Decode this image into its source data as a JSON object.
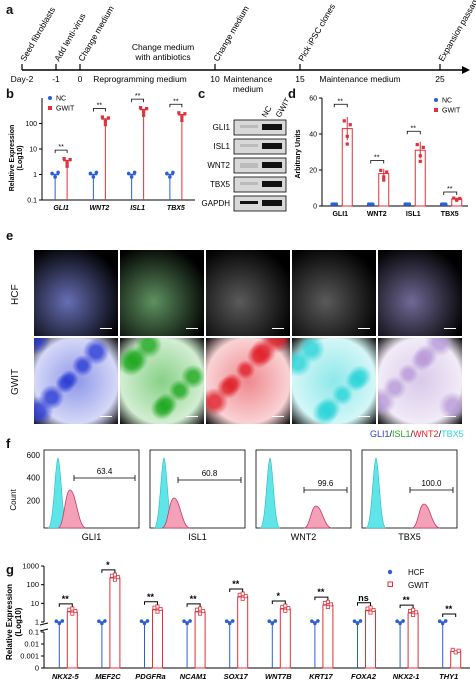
{
  "panels": {
    "a": "a",
    "b": "b",
    "c": "c",
    "d": "d",
    "e": "e",
    "f": "f",
    "g": "g"
  },
  "timeline": {
    "days": [
      "Day-2",
      "-1",
      "0",
      "10",
      "15",
      "25"
    ],
    "events_top": [
      "Seed fibroblasts",
      "Add lenti-virus",
      "Change medium",
      "Change medium with antibiotics",
      "Change medium",
      "Pick iPSC clones",
      "Expansion passage"
    ],
    "phases": [
      "Reprogramming medium",
      "Maintenance medium",
      "Maintenance medium"
    ]
  },
  "panel_b": {
    "ylabel": "Relative Expression (Log10)",
    "yticks": [
      "100",
      "10",
      "1",
      "0.1"
    ],
    "legend": [
      "NC",
      "GWIT"
    ],
    "genes": [
      "GLI1",
      "WNT2",
      "ISL1",
      "TBX5"
    ],
    "sig": [
      "**",
      "**",
      "**",
      "**"
    ]
  },
  "panel_c": {
    "cols": [
      "NC",
      "GWIT"
    ],
    "rows": [
      "GLI1",
      "ISL1",
      "WNT2",
      "TBX5",
      "GAPDH"
    ]
  },
  "panel_d": {
    "ylabel": "Arbitrary Units",
    "yticks": [
      "60",
      "40",
      "20",
      "0"
    ],
    "legend": [
      "NC",
      "GWIT"
    ],
    "genes": [
      "GLI1",
      "WNT2",
      "ISL1",
      "TBX5"
    ],
    "sig": [
      "**",
      "**",
      "**",
      "**"
    ],
    "gwit_values": [
      43,
      18,
      31,
      4
    ],
    "nc_values": [
      1,
      1,
      1,
      1
    ]
  },
  "panel_e": {
    "rows": [
      "HCF",
      "GWIT"
    ],
    "legend": {
      "gli1": "GLI1",
      "sep": "/",
      "isl1": "ISL1",
      "wnt2": "WNT2",
      "tbx5": "TBX5"
    },
    "colors": [
      "#2a3bd6",
      "#1fa81f",
      "#e0202a",
      "#2ad4d8",
      "#b89ad8"
    ]
  },
  "panel_f": {
    "yticks": [
      "600",
      "400",
      "200"
    ],
    "ylabel": "Count",
    "markers": [
      "GLI1",
      "ISL1",
      "WNT2",
      "TBX5"
    ],
    "percent": [
      "63.4",
      "60.8",
      "99.6",
      "100.0"
    ]
  },
  "panel_g": {
    "ylabel": "Relative Expression (Log10)",
    "yticks": [
      "1000",
      "100",
      "10",
      "1",
      "0.1",
      "0.01",
      "0.001",
      "0"
    ],
    "legend": [
      "HCF",
      "GWIT"
    ],
    "genes": [
      "NKX2-5",
      "MEF2C",
      "PDGFRa",
      "NCAM1",
      "SOX17",
      "WNT7B",
      "KRT17",
      "FOXA2",
      "NKX2-1",
      "THY1"
    ],
    "sig": [
      "**",
      "*",
      "**",
      "**",
      "**",
      "*",
      "**",
      "ns",
      "**",
      "**"
    ]
  },
  "chart_data": [
    {
      "type": "bar",
      "title": "",
      "ylabel": "Relative Expression (Log10)",
      "yscale": "log",
      "ylim": [
        0.1,
        1000
      ],
      "categories": [
        "GLI1",
        "WNT2",
        "ISL1",
        "TBX5"
      ],
      "series": [
        {
          "name": "NC",
          "values": [
            1,
            1,
            1,
            1
          ]
        },
        {
          "name": "GWIT",
          "values": [
            3.5,
            150,
            350,
            220
          ]
        }
      ]
    },
    {
      "type": "bar",
      "title": "",
      "ylabel": "Arbitrary Units",
      "ylim": [
        0,
        60
      ],
      "categories": [
        "GLI1",
        "WNT2",
        "ISL1",
        "TBX5"
      ],
      "series": [
        {
          "name": "NC",
          "values": [
            1,
            1,
            1,
            1
          ]
        },
        {
          "name": "GWIT",
          "values": [
            43,
            18,
            31,
            4
          ]
        }
      ]
    },
    {
      "type": "bar",
      "title": "",
      "ylabel": "Relative Expression (Log10)",
      "yscale": "log",
      "categories": [
        "NKX2-5",
        "MEF2C",
        "PDGFRa",
        "NCAM1",
        "SOX17",
        "WNT7B",
        "KRT17",
        "FOXA2",
        "NKX2-1",
        "THY1"
      ],
      "series": [
        {
          "name": "HCF",
          "values": [
            1,
            1,
            1,
            1,
            1,
            1,
            1,
            1,
            1,
            1
          ]
        },
        {
          "name": "GWIT",
          "values": [
            3.5,
            230,
            4.5,
            3.5,
            22,
            5,
            8,
            4,
            3,
            0.0025
          ]
        }
      ]
    }
  ]
}
